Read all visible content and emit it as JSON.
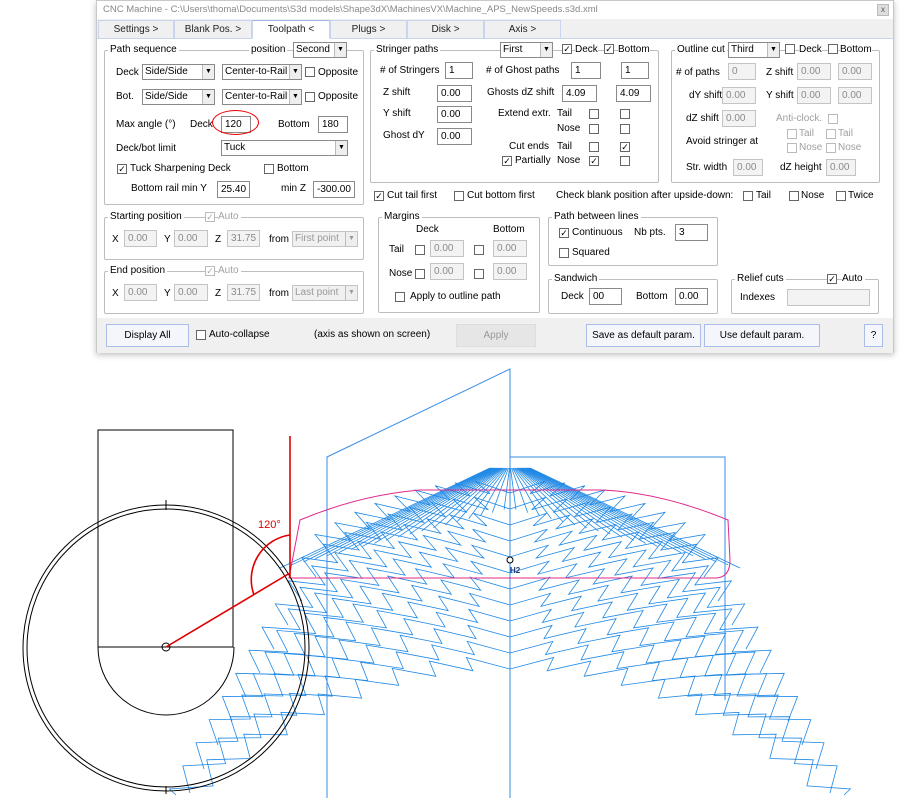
{
  "window": {
    "title": "CNC Machine - C:\\Users\\thoma\\Documents\\S3d models\\Shape3dX\\MachinesVX\\Machine_APS_NewSpeeds.s3d.xml",
    "close": "x"
  },
  "tabs": [
    "Settings >",
    "Blank Pos. >",
    "Toolpath <",
    "Plugs >",
    "Disk >",
    "Axis >"
  ],
  "path_sequence": {
    "title": "Path sequence",
    "position_label": "position",
    "position": "Second",
    "deck_label": "Deck",
    "deck_mode": "Side/Side",
    "deck_dir": "Center-to-Rail",
    "opposite": "Opposite",
    "bot_label": "Bot.",
    "bot_mode": "Side/Side",
    "bot_dir": "Center-to-Rail",
    "max_angle_label": "Max angle (°)",
    "deck": "Deck",
    "deck_angle": "120",
    "bottom": "Bottom",
    "bottom_angle": "180",
    "limit_label": "Deck/bot limit",
    "limit": "Tuck",
    "tuck_label": "Tuck Sharpening Deck",
    "tuck_checked": true,
    "bottom_cb": "Bottom",
    "rail_label": "Bottom rail min Y",
    "rail_value": "25.40",
    "minz_label": "min Z",
    "minz_value": "-300.00"
  },
  "stringer": {
    "title": "Stringer paths",
    "order": "First",
    "deck": "Deck",
    "bottom": "Bottom",
    "num_label": "# of Stringers",
    "num": "1",
    "ghost_label": "# of Ghost paths",
    "ghost1": "1",
    "ghost2": "1",
    "zshift_label": "Z shift",
    "zshift": "0.00",
    "ghostdz_label": "Ghosts dZ shift",
    "ghostdz1": "4.09",
    "ghostdz2": "4.09",
    "yshift_label": "Y shift",
    "yshift": "0.00",
    "extend_label": "Extend extr.",
    "tail": "Tail",
    "nose": "Nose",
    "ghostdy_label": "Ghost dY",
    "ghostdy": "0.00",
    "cutends_label": "Cut ends",
    "partially": "Partially"
  },
  "outline": {
    "title": "Outline cut",
    "order": "Third",
    "deck": "Deck",
    "bottom": "Bottom",
    "paths_label": "# of paths",
    "paths": "0",
    "zshift_label": "Z shift",
    "zshift1": "0.00",
    "zshift2": "0.00",
    "dy_label": "dY shift",
    "dy": "0.00",
    "yshift_label": "Y shift",
    "yshift1": "0.00",
    "yshift2": "0.00",
    "dz_label": "dZ shift",
    "dz": "0.00",
    "anticlock": "Anti-clock.",
    "avoid_label": "Avoid stringer at",
    "tail": "Tail",
    "nose": "Nose",
    "strw_label": "Str. width",
    "strw": "0.00",
    "dzh_label": "dZ height",
    "dzh": "0.00"
  },
  "row": {
    "cut_tail_first": "Cut tail first",
    "cut_bottom_first": "Cut bottom first",
    "check_label": "Check blank position after upside-down:",
    "tail": "Tail",
    "nose": "Nose",
    "twice": "Twice"
  },
  "start": {
    "title": "Starting position",
    "auto": "Auto",
    "x": "X",
    "xv": "0.00",
    "y": "Y",
    "yv": "0.00",
    "z": "Z",
    "zv": "31.75",
    "from": "from",
    "from_v": "First point"
  },
  "end": {
    "title": "End position",
    "auto": "Auto",
    "x": "X",
    "xv": "0.00",
    "y": "Y",
    "yv": "0.00",
    "z": "Z",
    "zv": "31.75",
    "from": "from",
    "from_v": "Last point"
  },
  "margins": {
    "title": "Margins",
    "deck": "Deck",
    "bottom": "Bottom",
    "tail": "Tail",
    "nose": "Nose",
    "v": "0.00",
    "apply": "Apply to outline path"
  },
  "pbl": {
    "title": "Path between lines",
    "continuous": "Continuous",
    "nbpts_label": "Nb pts.",
    "nbpts": "3",
    "squared": "Squared"
  },
  "sandwich": {
    "title": "Sandwich",
    "deck": "Deck",
    "deck_v": "00",
    "bottom": "Bottom",
    "bottom_v": "0.00"
  },
  "relief": {
    "title": "Relief cuts",
    "auto": "Auto",
    "indexes": "Indexes",
    "indexes_v": ""
  },
  "bar": {
    "display_all": "Display All",
    "auto_collapse": "Auto-collapse",
    "axis_note": "(axis as shown on screen)",
    "apply": "Apply",
    "save_default": "Save as default param.",
    "use_default": "Use default param.",
    "help": "?"
  },
  "drawing": {
    "angle_label": "120°",
    "point_label": "H2",
    "colors": {
      "toolpath": "#1e88e5",
      "outline": "#e0288a",
      "angle": "#e00000"
    }
  }
}
